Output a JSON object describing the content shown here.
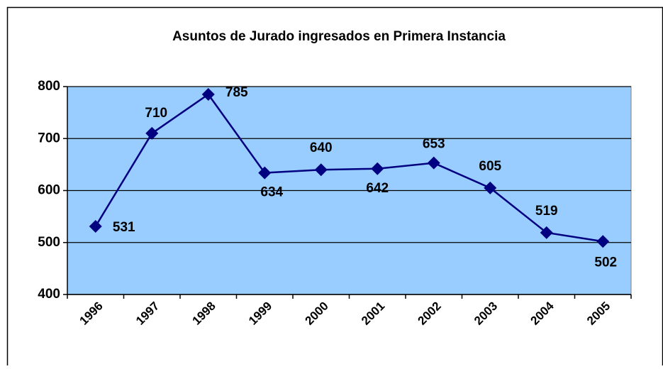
{
  "chart_data": {
    "type": "line",
    "title": "Asuntos de Jurado ingresados en Primera Instancia",
    "categories": [
      "1996",
      "1997",
      "1998",
      "1999",
      "2000",
      "2001",
      "2002",
      "2003",
      "2004",
      "2005"
    ],
    "series": [
      {
        "name": "Asuntos de Jurado",
        "color": "#000080",
        "values": [
          531,
          710,
          785,
          634,
          640,
          642,
          653,
          605,
          519,
          502
        ]
      }
    ],
    "ylim": [
      400,
      800
    ],
    "yticks": [
      400,
      500,
      600,
      700,
      800
    ],
    "grid": true,
    "plot_background": "#99ccff"
  }
}
